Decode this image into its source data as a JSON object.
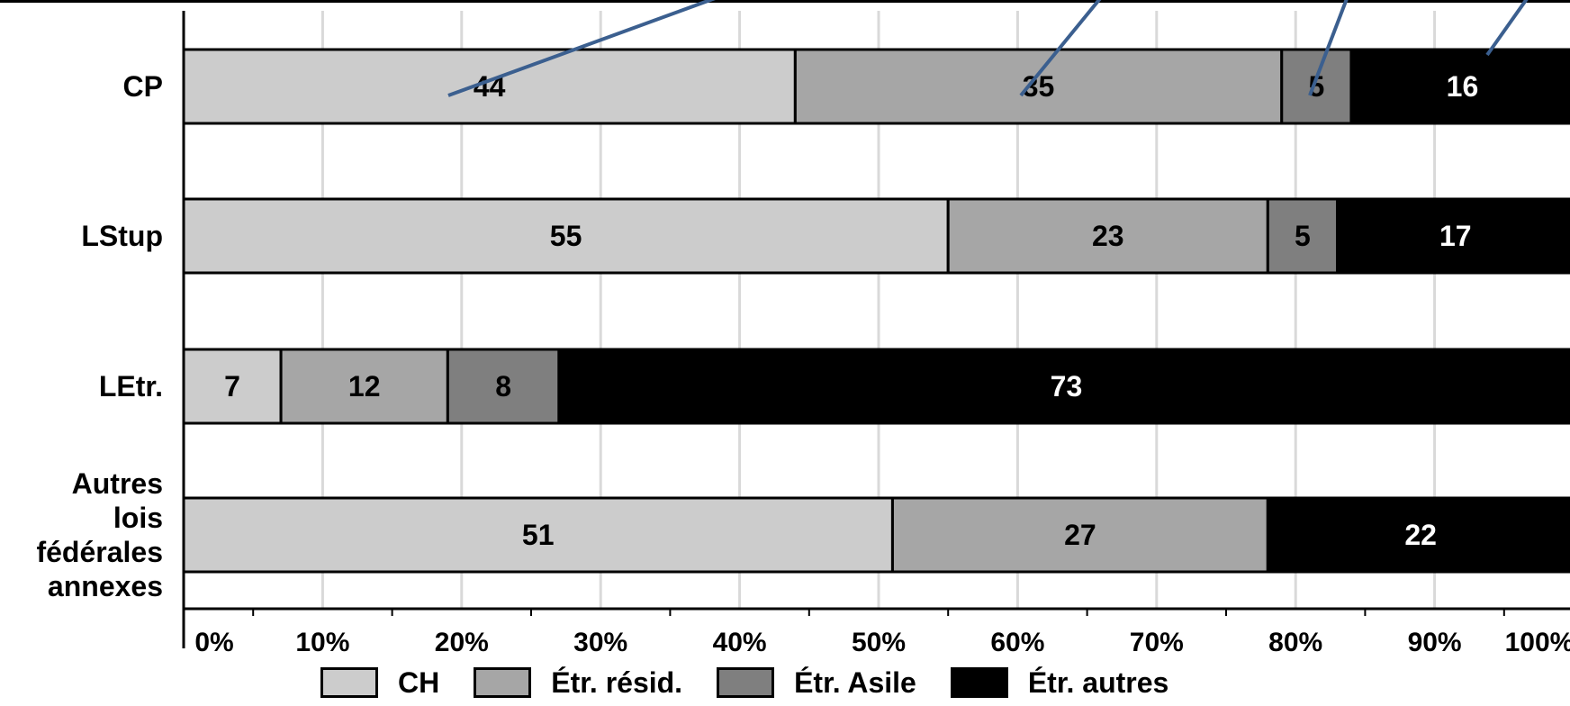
{
  "chart_data": {
    "type": "bar",
    "orientation": "horizontal",
    "stacked": true,
    "categories": [
      "CP",
      "LStup",
      "LEtr.",
      "Autres lois fédérales annexes"
    ],
    "series": [
      {
        "name": "CH",
        "values": [
          44,
          55,
          7,
          51
        ],
        "color": "#cccccc"
      },
      {
        "name": "Étr. résid.",
        "values": [
          35,
          23,
          12,
          27
        ],
        "color": "#a6a6a6"
      },
      {
        "name": "Étr. Asile",
        "values": [
          5,
          5,
          8,
          0
        ],
        "color": "#7f7f7f"
      },
      {
        "name": "Étr. autres",
        "values": [
          16,
          17,
          73,
          22
        ],
        "color": "#000000"
      }
    ],
    "xlim": [
      0,
      100
    ],
    "xticks": [
      "0%",
      "10%",
      "20%",
      "30%",
      "40%",
      "50%",
      "60%",
      "70%",
      "80%",
      "90%",
      "100%"
    ],
    "grid": true,
    "legend_position": "bottom",
    "data_labels": true
  }
}
